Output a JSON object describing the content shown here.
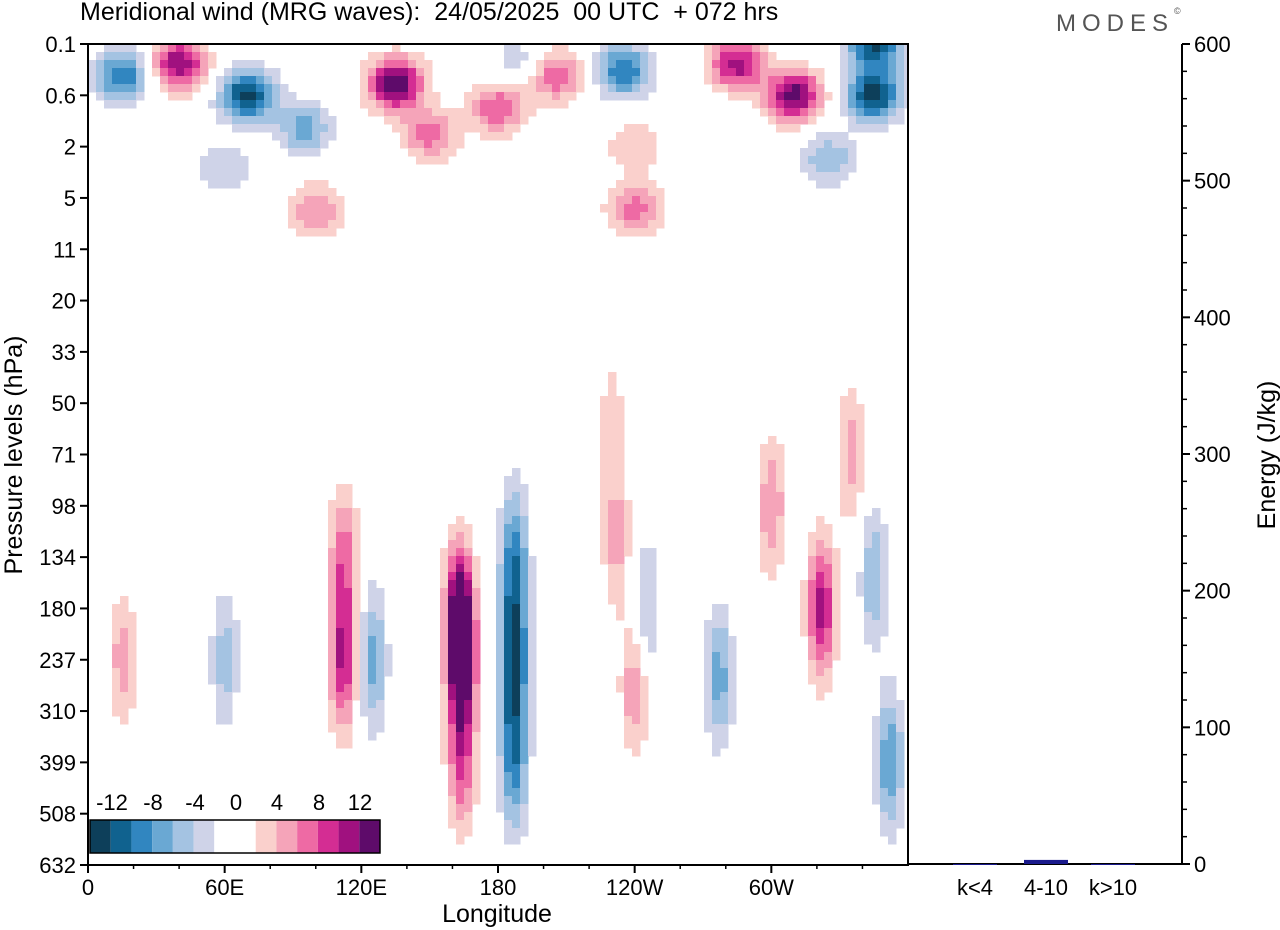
{
  "title": "Meridional wind (MRG waves):  24/05/2025  00 UTC  + 072 hrs",
  "logo": "MODES",
  "colors": {
    "neg": [
      "#0d3f5a",
      "#10628f",
      "#3186c0",
      "#6aa8d3",
      "#a4c3e2",
      "#cfd3e8"
    ],
    "pos": [
      "#fad0cc",
      "#f5a4b9",
      "#ee6aa4",
      "#d42d93",
      "#a0117f",
      "#5e0b6a"
    ]
  },
  "chart_data": [
    {
      "type": "heatmap",
      "title": "Meridional wind (MRG waves)",
      "xlabel": "Longitude",
      "ylabel": "Pressure levels (hPa)",
      "x_ticks": [
        "0",
        "60E",
        "120E",
        "180",
        "120W",
        "60W"
      ],
      "x_tick_values": [
        0,
        60,
        120,
        180,
        240,
        300
      ],
      "xlim": [
        0,
        360
      ],
      "y_ticks": [
        "0.1",
        "0.6",
        "2",
        "5",
        "11",
        "20",
        "33",
        "50",
        "71",
        "98",
        "134",
        "180",
        "237",
        "310",
        "399",
        "508",
        "632"
      ],
      "colorbar": {
        "labels": [
          "-12",
          "-8",
          "-4",
          "0",
          "4",
          "8",
          "12"
        ],
        "levels": [
          -14,
          -12,
          -10,
          -8,
          -6,
          -4,
          -2,
          2,
          4,
          6,
          8,
          10,
          12,
          14
        ]
      },
      "features": [
        {
          "lon": 164,
          "level": 237,
          "value": 14
        },
        {
          "lon": 163,
          "level": 180,
          "value": 11
        },
        {
          "lon": 164,
          "level": 399,
          "value": 8
        },
        {
          "lon": 187,
          "level": 237,
          "value": -12
        },
        {
          "lon": 187,
          "level": 134,
          "value": -9
        },
        {
          "lon": 187,
          "level": 399,
          "value": -9
        },
        {
          "lon": 112,
          "level": 237,
          "value": 10
        },
        {
          "lon": 112,
          "level": 134,
          "value": 7
        },
        {
          "lon": 125,
          "level": 237,
          "value": -7
        },
        {
          "lon": 15,
          "level": 237,
          "value": 5
        },
        {
          "lon": 60,
          "level": 237,
          "value": -5
        },
        {
          "lon": 240,
          "level": 270,
          "value": 6
        },
        {
          "lon": 277,
          "level": 260,
          "value": -7
        },
        {
          "lon": 232,
          "level": 120,
          "value": 5
        },
        {
          "lon": 245,
          "level": 180,
          "value": -5
        },
        {
          "lon": 300,
          "level": 98,
          "value": 6
        },
        {
          "lon": 322,
          "level": 180,
          "value": 11
        },
        {
          "lon": 345,
          "level": 150,
          "value": -6
        },
        {
          "lon": 352,
          "level": 399,
          "value": -8
        },
        {
          "lon": 335,
          "level": 71,
          "value": 5
        },
        {
          "lon": 230,
          "level": 55,
          "value": 3
        },
        {
          "lon": 15,
          "level": 0.3,
          "value": -10
        },
        {
          "lon": 40,
          "level": 0.2,
          "value": 12
        },
        {
          "lon": 70,
          "level": 0.6,
          "value": -13
        },
        {
          "lon": 95,
          "level": 1.3,
          "value": -7
        },
        {
          "lon": 135,
          "level": 0.4,
          "value": 14
        },
        {
          "lon": 150,
          "level": 1.5,
          "value": 7
        },
        {
          "lon": 180,
          "level": 0.8,
          "value": 8
        },
        {
          "lon": 190,
          "level": 0.2,
          "value": -4
        },
        {
          "lon": 205,
          "level": 0.3,
          "value": 8
        },
        {
          "lon": 235,
          "level": 0.25,
          "value": -10
        },
        {
          "lon": 285,
          "level": 0.2,
          "value": 11
        },
        {
          "lon": 310,
          "level": 0.6,
          "value": 13
        },
        {
          "lon": 345,
          "level": 0.6,
          "value": -13
        },
        {
          "lon": 345,
          "level": 0.1,
          "value": -12
        },
        {
          "lon": 325,
          "level": 2.5,
          "value": -6
        },
        {
          "lon": 240,
          "level": 6,
          "value": 7
        },
        {
          "lon": 100,
          "level": 6,
          "value": 6
        },
        {
          "lon": 240,
          "level": 2,
          "value": 4
        },
        {
          "lon": 60,
          "level": 3,
          "value": -4
        }
      ]
    },
    {
      "type": "bar",
      "categories": [
        "k<4",
        "4-10",
        "k>10"
      ],
      "values": [
        0,
        3,
        0
      ],
      "ylabel": "Energy (J/kg)",
      "ylim": [
        0,
        600
      ],
      "y_ticks": [
        "0",
        "100",
        "200",
        "300",
        "400",
        "500",
        "600"
      ],
      "color": "#1a1a8c"
    }
  ]
}
